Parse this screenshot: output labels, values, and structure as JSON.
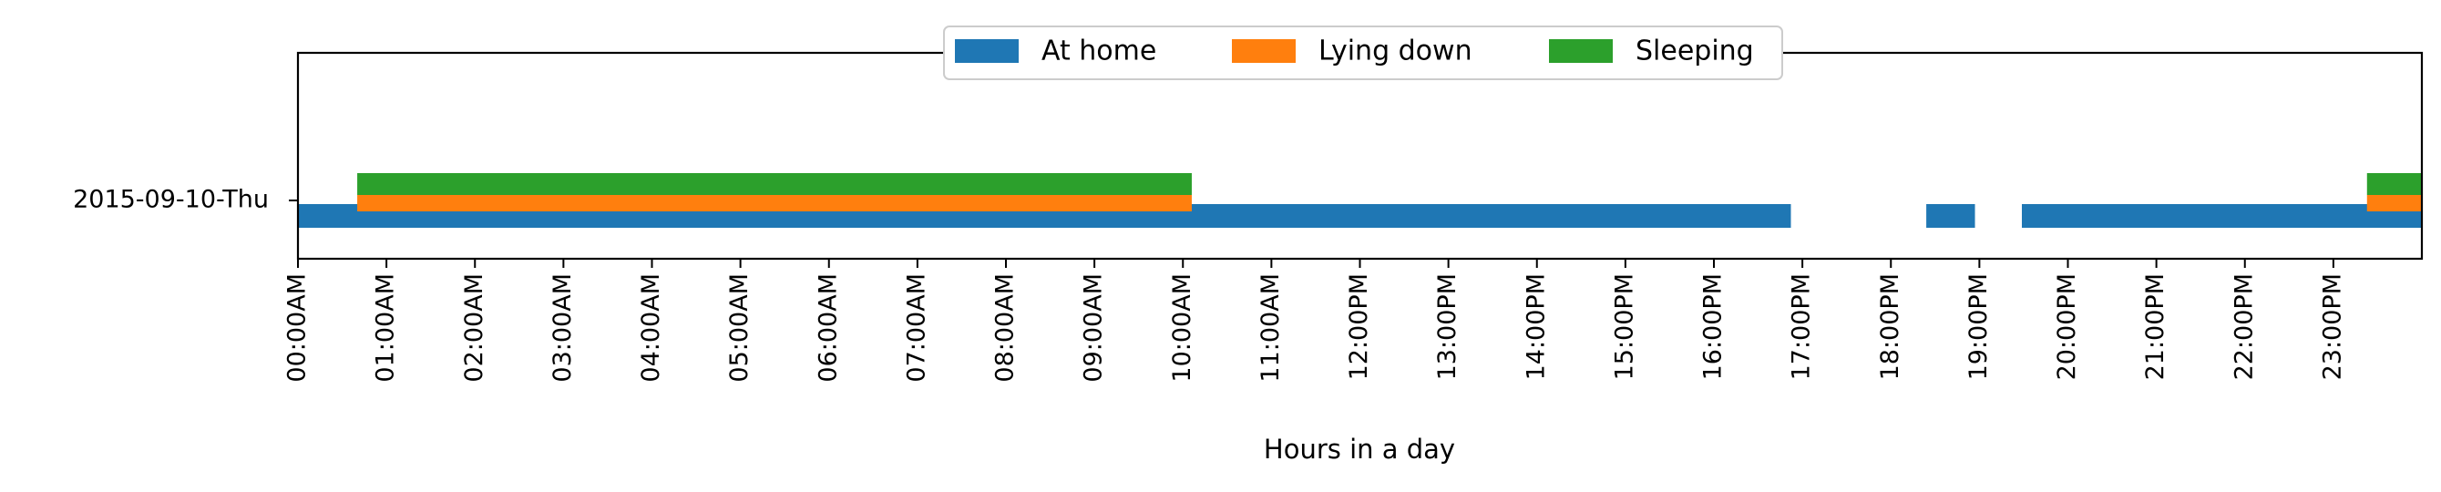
{
  "chart_data": {
    "type": "bar",
    "orientation": "horizontal-timeline",
    "title": "",
    "xlabel": "Hours in a day",
    "ylabel": "",
    "xlim": [
      0,
      24
    ],
    "x_unit": "hours",
    "row_label": "2015-09-10-Thu",
    "x_ticks": [
      "00:00AM",
      "01:00AM",
      "02:00AM",
      "03:00AM",
      "04:00AM",
      "05:00AM",
      "06:00AM",
      "07:00AM",
      "08:00AM",
      "09:00AM",
      "10:00AM",
      "11:00AM",
      "12:00PM",
      "13:00PM",
      "14:00PM",
      "15:00PM",
      "16:00PM",
      "17:00PM",
      "18:00PM",
      "19:00PM",
      "20:00PM",
      "21:00PM",
      "22:00PM",
      "23:00PM"
    ],
    "grid": false,
    "legend_position": "top-center",
    "series": [
      {
        "name": "At home",
        "color": "#1f77b4",
        "intervals": [
          [
            0,
            16.87
          ],
          [
            18.4,
            18.95
          ],
          [
            19.48,
            24
          ]
        ]
      },
      {
        "name": "Lying down",
        "color": "#ff7f0e",
        "intervals": [
          [
            0.67,
            10.1
          ],
          [
            23.38,
            24
          ]
        ]
      },
      {
        "name": "Sleeping",
        "color": "#2ca02c",
        "intervals": [
          [
            0.67,
            10.1
          ],
          [
            23.38,
            24
          ]
        ]
      }
    ]
  }
}
